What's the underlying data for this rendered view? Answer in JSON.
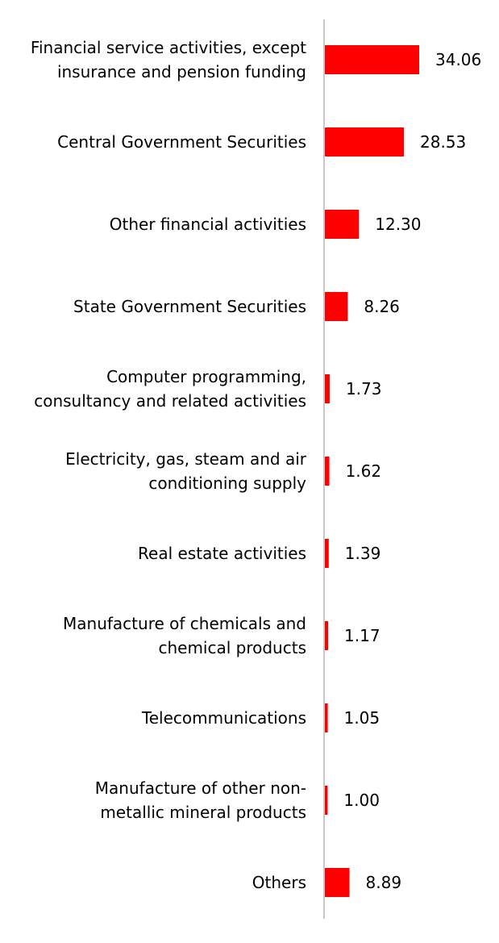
{
  "chart_data": {
    "type": "bar",
    "orientation": "horizontal",
    "categories": [
      [
        "Financial service activities, except",
        "insurance and pension funding"
      ],
      [
        "Central Government Securities"
      ],
      [
        "Other financial activities"
      ],
      [
        "State Government Securities"
      ],
      [
        "Computer programming,",
        "consultancy and related activities"
      ],
      [
        "Electricity, gas, steam and air",
        "conditioning supply"
      ],
      [
        "Real estate activities"
      ],
      [
        "Manufacture of chemicals and",
        "chemical products"
      ],
      [
        "Telecommunications"
      ],
      [
        "Manufacture of other non-",
        "metallic mineral products"
      ],
      [
        "Others"
      ]
    ],
    "values": [
      34.06,
      28.53,
      12.3,
      8.26,
      1.73,
      1.62,
      1.39,
      1.17,
      1.05,
      1.0,
      8.89
    ],
    "value_labels": [
      "34.06",
      "28.53",
      "12.30",
      "8.26",
      "1.73",
      "1.62",
      "1.39",
      "1.17",
      "1.05",
      "1.00",
      "8.89"
    ],
    "title": "",
    "xlabel": "",
    "ylabel": "",
    "xlim": [
      0,
      100
    ],
    "grid": false,
    "legend": "none",
    "bar_color": "#ff0000",
    "axis_color": "#c8c8c8"
  }
}
